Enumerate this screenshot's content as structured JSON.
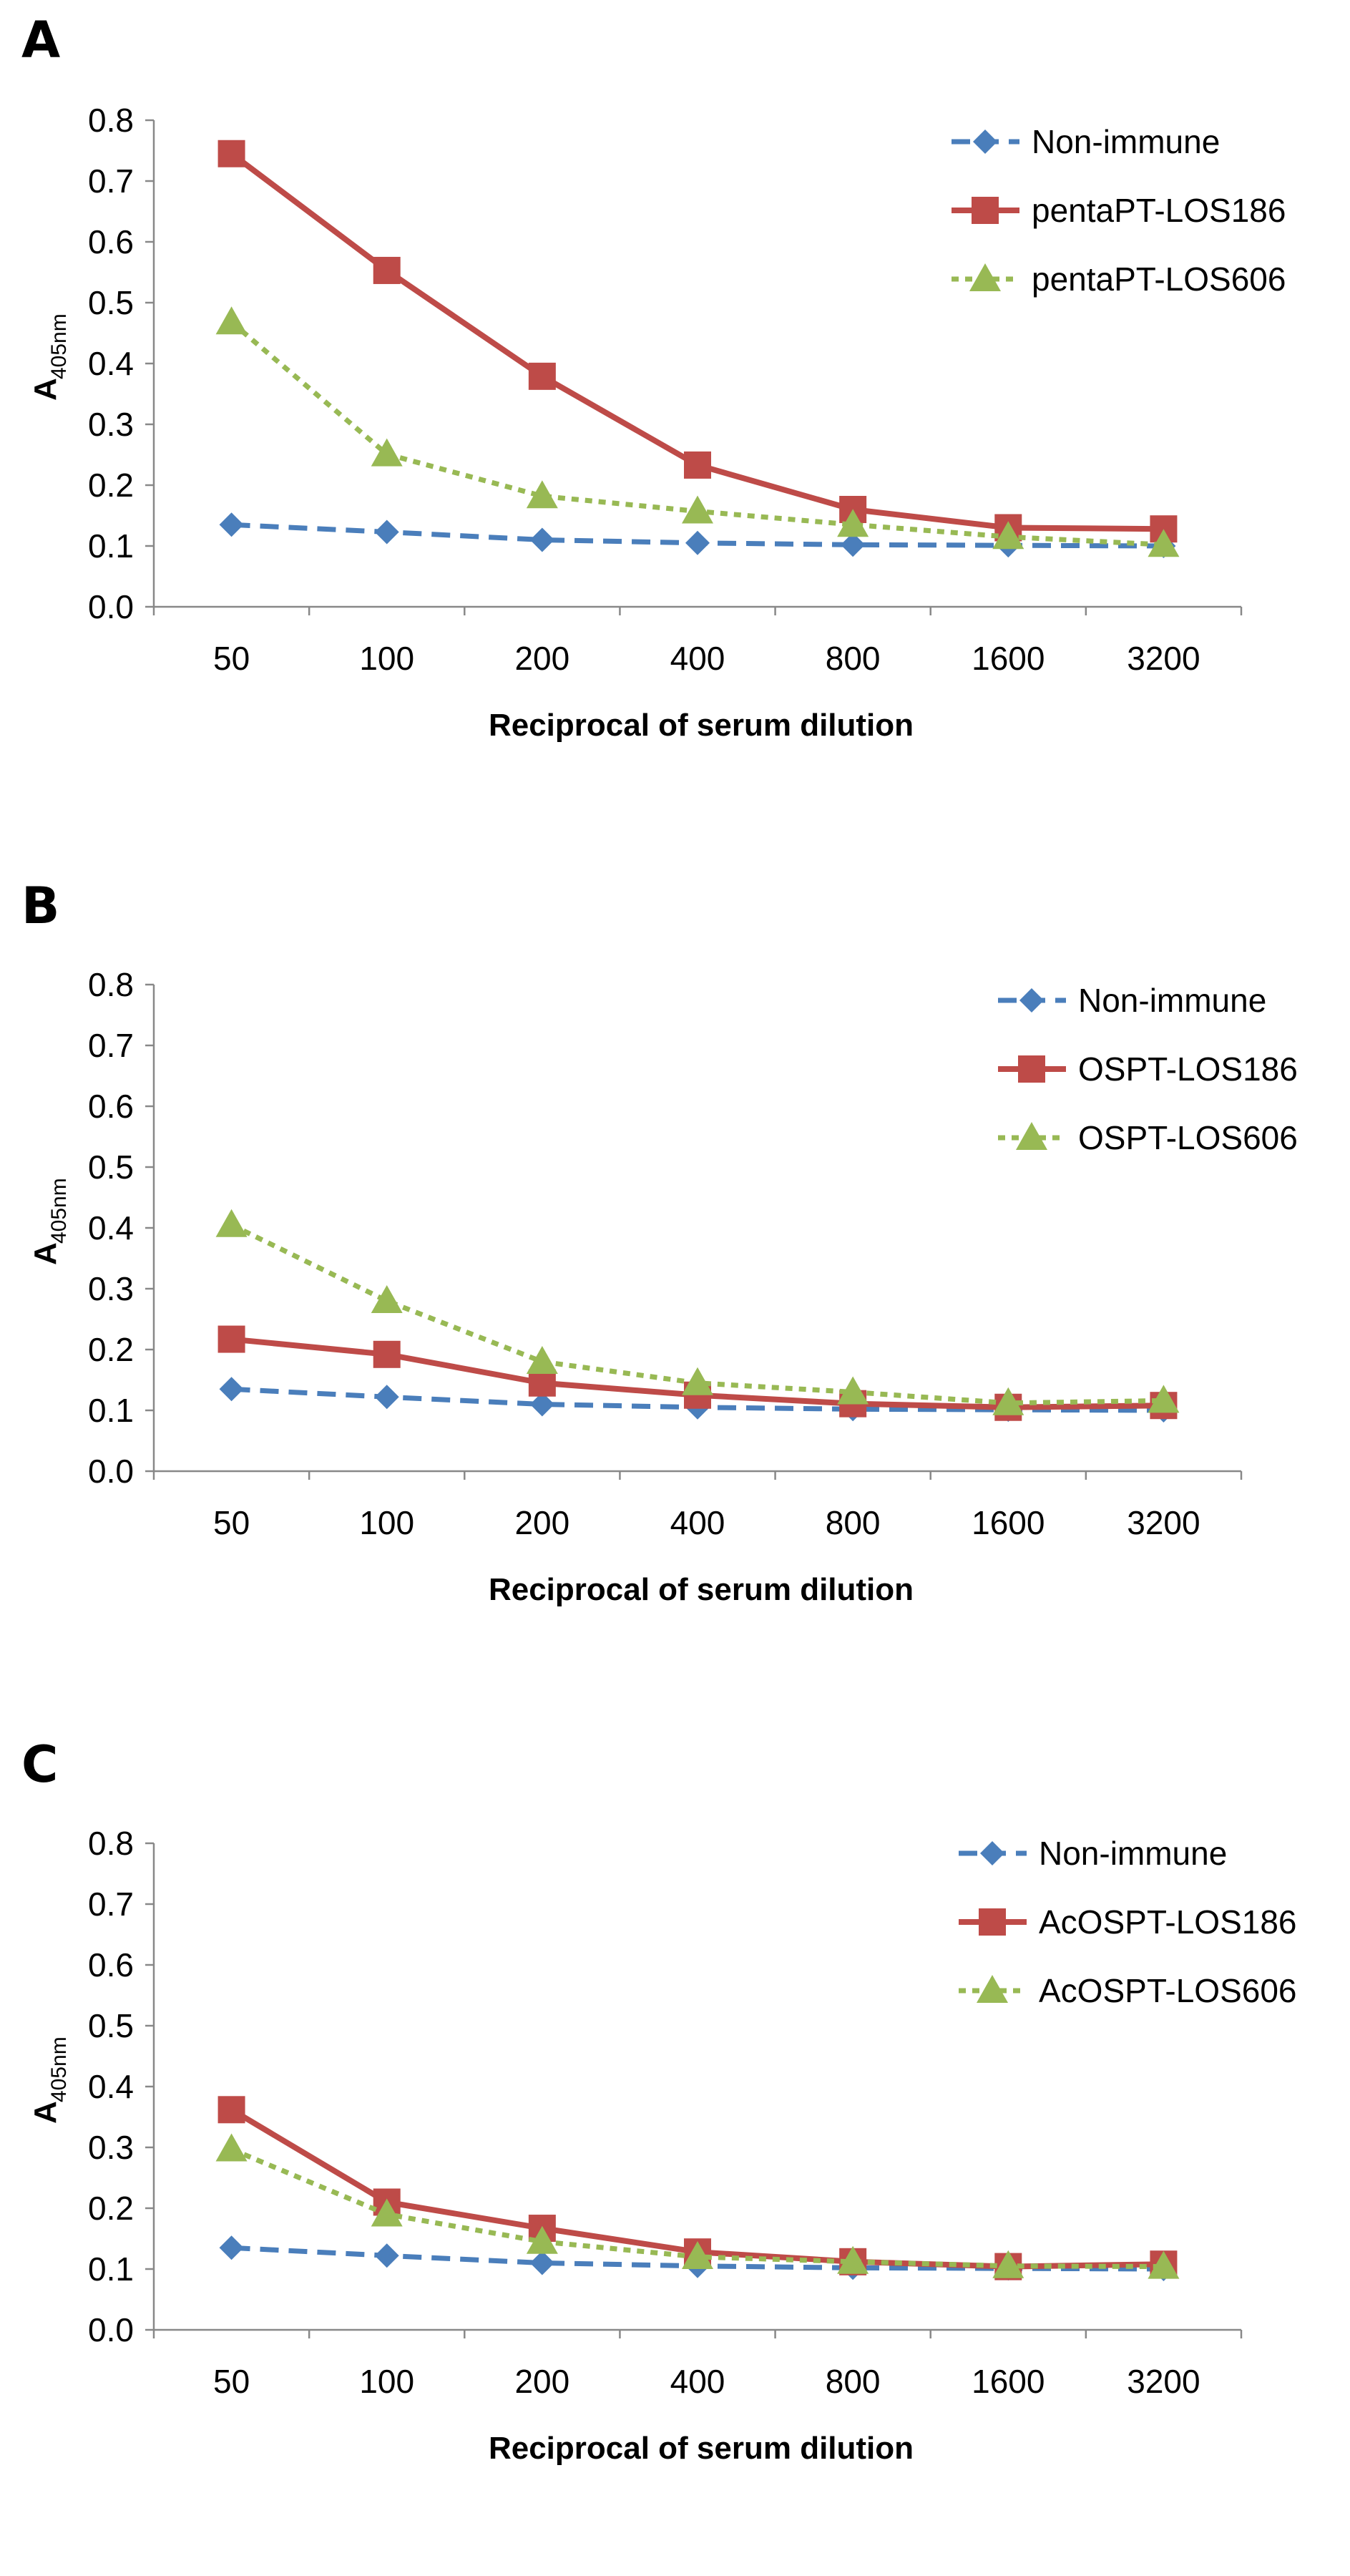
{
  "chart_data": [
    {
      "panel": "A",
      "type": "line",
      "categories": [
        "50",
        "100",
        "200",
        "400",
        "800",
        "1600",
        "3200"
      ],
      "xlabel": "Reciprocal of serum dilution",
      "ylabel": "A",
      "ylabel_sub": "405nm",
      "ylim": [
        0,
        0.8
      ],
      "yticks": [
        "0.0",
        "0.1",
        "0.2",
        "0.3",
        "0.4",
        "0.5",
        "0.6",
        "0.7",
        "0.8"
      ],
      "grid": false,
      "legend": "top-right",
      "series": [
        {
          "name": "Non-immune",
          "color": "#4a7ebb",
          "dash": "dashed",
          "marker": "diamond",
          "values": [
            0.135,
            0.123,
            0.11,
            0.105,
            0.102,
            0.101,
            0.1
          ]
        },
        {
          "name": "pentaPT-LOS186",
          "color": "#be4b48",
          "dash": "solid",
          "marker": "square",
          "values": [
            0.745,
            0.553,
            0.379,
            0.233,
            0.16,
            0.13,
            0.128
          ]
        },
        {
          "name": "pentaPT-LOS606",
          "color": "#98b954",
          "dash": "dotted",
          "marker": "triangle",
          "values": [
            0.468,
            0.251,
            0.182,
            0.157,
            0.135,
            0.115,
            0.102
          ]
        }
      ]
    },
    {
      "panel": "B",
      "type": "line",
      "categories": [
        "50",
        "100",
        "200",
        "400",
        "800",
        "1600",
        "3200"
      ],
      "xlabel": "Reciprocal of serum dilution",
      "ylabel": "A",
      "ylabel_sub": "405nm",
      "ylim": [
        0,
        0.8
      ],
      "yticks": [
        "0.0",
        "0.1",
        "0.2",
        "0.3",
        "0.4",
        "0.5",
        "0.6",
        "0.7",
        "0.8"
      ],
      "grid": false,
      "legend": "top-right",
      "series": [
        {
          "name": "Non-immune",
          "color": "#4a7ebb",
          "dash": "dashed",
          "marker": "diamond",
          "values": [
            0.135,
            0.122,
            0.11,
            0.105,
            0.102,
            0.101,
            0.1
          ]
        },
        {
          "name": "OSPT-LOS186",
          "color": "#be4b48",
          "dash": "solid",
          "marker": "square",
          "values": [
            0.217,
            0.192,
            0.145,
            0.125,
            0.111,
            0.105,
            0.108
          ]
        },
        {
          "name": "OSPT-LOS606",
          "color": "#98b954",
          "dash": "dotted",
          "marker": "triangle",
          "values": [
            0.405,
            0.28,
            0.18,
            0.145,
            0.13,
            0.112,
            0.116
          ]
        }
      ]
    },
    {
      "panel": "C",
      "type": "line",
      "categories": [
        "50",
        "100",
        "200",
        "400",
        "800",
        "1600",
        "3200"
      ],
      "xlabel": "Reciprocal of serum dilution",
      "ylabel": "A",
      "ylabel_sub": "405nm",
      "ylim": [
        0,
        0.8
      ],
      "yticks": [
        "0.0",
        "0.1",
        "0.2",
        "0.3",
        "0.4",
        "0.5",
        "0.6",
        "0.7",
        "0.8"
      ],
      "grid": false,
      "legend": "top-right",
      "series": [
        {
          "name": "Non-immune",
          "color": "#4a7ebb",
          "dash": "dashed",
          "marker": "diamond",
          "values": [
            0.135,
            0.122,
            0.11,
            0.105,
            0.102,
            0.101,
            0.1
          ]
        },
        {
          "name": "AcOSPT-LOS186",
          "color": "#be4b48",
          "dash": "solid",
          "marker": "square",
          "values": [
            0.362,
            0.21,
            0.167,
            0.128,
            0.112,
            0.104,
            0.108
          ]
        },
        {
          "name": "AcOSPT-LOS606",
          "color": "#98b954",
          "dash": "dotted",
          "marker": "triangle",
          "values": [
            0.297,
            0.19,
            0.145,
            0.12,
            0.112,
            0.105,
            0.104
          ]
        }
      ]
    }
  ]
}
